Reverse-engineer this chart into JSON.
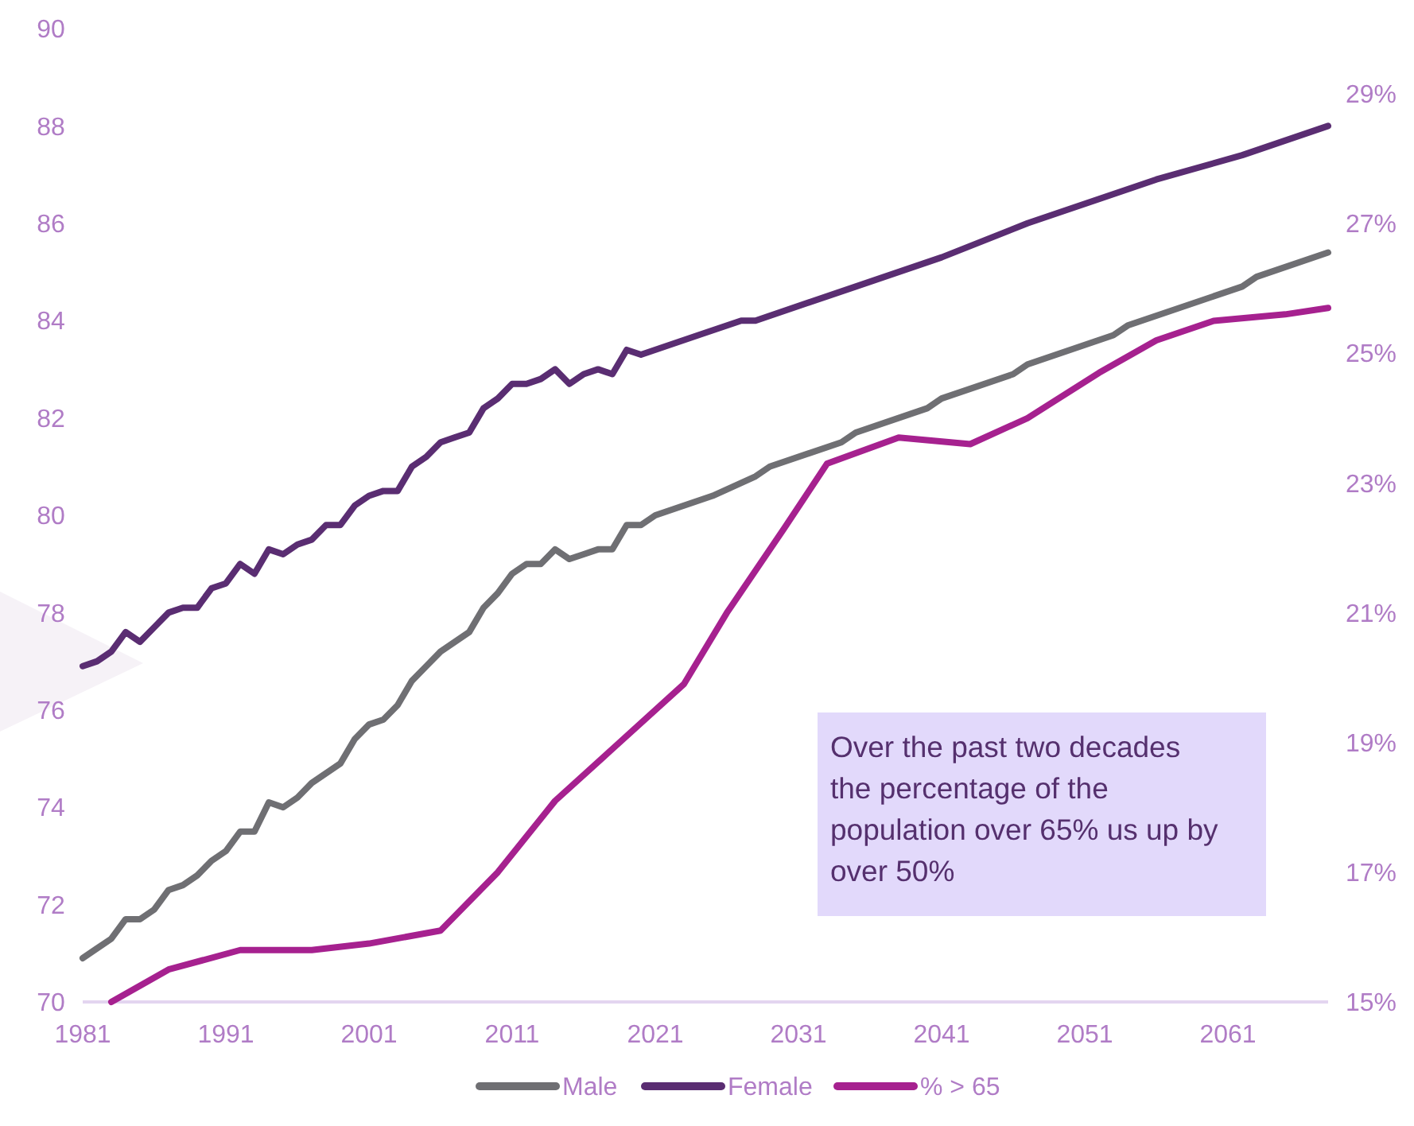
{
  "chart_data": {
    "type": "line",
    "xlim": [
      1981,
      2068
    ],
    "xticks": [
      1981,
      1991,
      2001,
      2011,
      2021,
      2031,
      2041,
      2051,
      2061
    ],
    "ylim": [
      70,
      90
    ],
    "yticks": [
      70,
      72,
      74,
      76,
      78,
      80,
      82,
      84,
      86,
      88,
      90
    ],
    "y2lim": [
      15,
      29
    ],
    "y2ticks": [
      {
        "value": 15,
        "label": "15%"
      },
      {
        "value": 17,
        "label": "17%"
      },
      {
        "value": 19,
        "label": "19%"
      },
      {
        "value": 21,
        "label": "21%"
      },
      {
        "value": 23,
        "label": "23%"
      },
      {
        "value": 25,
        "label": "25%"
      },
      {
        "value": 27,
        "label": "27%"
      },
      {
        "value": 29,
        "label": "29%"
      }
    ],
    "legend": "bottom",
    "grid": false,
    "marker": "none",
    "line_style": "solid",
    "annotations": [
      "Over the past two decades the percentage of the population over 65% us up by over 50%"
    ],
    "series": [
      {
        "name": "Male",
        "color": "#6f6f73",
        "x": [
          1981,
          1982,
          1983,
          1984,
          1985,
          1986,
          1987,
          1988,
          1989,
          1990,
          1991,
          1992,
          1993,
          1994,
          1995,
          1996,
          1997,
          1998,
          1999,
          2000,
          2001,
          2002,
          2003,
          2004,
          2005,
          2006,
          2007,
          2008,
          2009,
          2010,
          2011,
          2012,
          2013,
          2014,
          2015,
          2016,
          2017,
          2018,
          2019,
          2020,
          2021,
          2023,
          2025,
          2028,
          2029,
          2034,
          2035,
          2040,
          2041,
          2046,
          2047,
          2053,
          2054,
          2062,
          2063,
          2068
        ],
        "values": [
          70.9,
          71.1,
          71.3,
          71.7,
          71.7,
          71.9,
          72.3,
          72.4,
          72.6,
          72.9,
          73.1,
          73.5,
          73.5,
          74.1,
          74.0,
          74.2,
          74.5,
          74.7,
          74.9,
          75.4,
          75.7,
          75.8,
          76.1,
          76.6,
          76.9,
          77.2,
          77.4,
          77.6,
          78.1,
          78.4,
          78.8,
          79.0,
          79.0,
          79.3,
          79.1,
          79.2,
          79.3,
          79.3,
          79.8,
          79.8,
          80.0,
          80.2,
          80.4,
          80.8,
          81.0,
          81.5,
          81.7,
          82.2,
          82.4,
          82.9,
          83.1,
          83.7,
          83.9,
          84.7,
          84.9,
          85.4
        ]
      },
      {
        "name": "Female",
        "color": "#5a2d72",
        "x": [
          1981,
          1982,
          1983,
          1984,
          1985,
          1986,
          1987,
          1988,
          1989,
          1990,
          1991,
          1992,
          1993,
          1994,
          1995,
          1996,
          1997,
          1998,
          1999,
          2000,
          2001,
          2002,
          2003,
          2004,
          2005,
          2006,
          2007,
          2008,
          2009,
          2010,
          2011,
          2012,
          2013,
          2014,
          2015,
          2016,
          2017,
          2018,
          2019,
          2020,
          2024,
          2027,
          2028,
          2035,
          2041,
          2047,
          2056,
          2062,
          2068
        ],
        "values": [
          76.9,
          77.0,
          77.2,
          77.6,
          77.4,
          77.7,
          78.0,
          78.1,
          78.1,
          78.5,
          78.6,
          79.0,
          78.8,
          79.3,
          79.2,
          79.4,
          79.5,
          79.8,
          79.8,
          80.2,
          80.4,
          80.5,
          80.5,
          81.0,
          81.2,
          81.5,
          81.6,
          81.7,
          82.2,
          82.4,
          82.7,
          82.7,
          82.8,
          83.0,
          82.7,
          82.9,
          83.0,
          82.9,
          83.4,
          83.3,
          83.7,
          84.0,
          84.0,
          84.7,
          85.3,
          86.0,
          86.9,
          87.4,
          88.0
        ]
      },
      {
        "name": "% > 65",
        "color": "#a6218f",
        "axis": "y2",
        "x": [
          1983,
          1987,
          1992,
          1997,
          2001,
          2006,
          2010,
          2014,
          2018,
          2023,
          2026,
          2030,
          2033,
          2038,
          2043,
          2047,
          2052,
          2056,
          2060,
          2065,
          2068
        ],
        "values": [
          15.0,
          15.5,
          15.8,
          15.8,
          15.9,
          16.1,
          17.0,
          18.1,
          18.9,
          19.9,
          21.0,
          22.3,
          23.3,
          23.7,
          23.6,
          24.0,
          24.7,
          25.2,
          25.5,
          25.6,
          25.7
        ]
      }
    ]
  }
}
